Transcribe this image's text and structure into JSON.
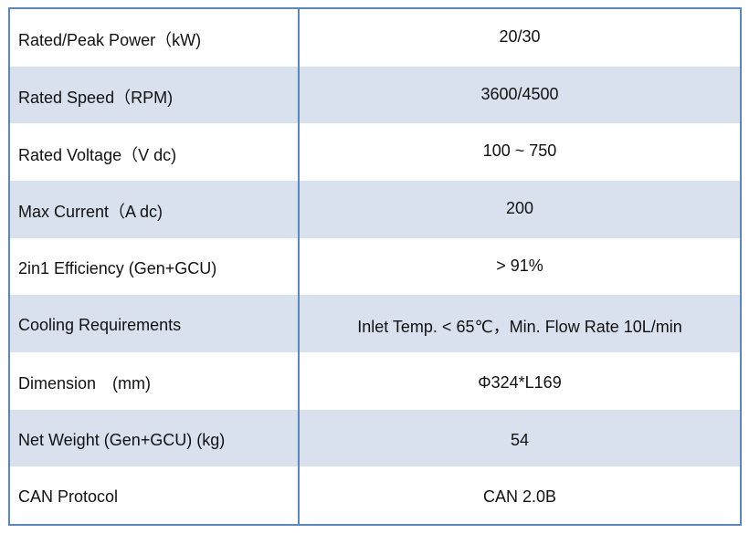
{
  "spec_table": {
    "rows": [
      {
        "label": "Rated/Peak Power（kW)",
        "value": "20/30"
      },
      {
        "label": "Rated Speed（RPM)",
        "value": "3600/4500"
      },
      {
        "label": "Rated Voltage（V dc)",
        "value": "100 ~ 750"
      },
      {
        "label": "Max Current（A dc)",
        "value": "200"
      },
      {
        "label": "2in1 Efficiency (Gen+GCU)",
        "value": "> 91%"
      },
      {
        "label": "Cooling Requirements",
        "value": "Inlet Temp. < 65℃，Min. Flow Rate 10L/min"
      },
      {
        "label": "Dimension　(mm)",
        "value": "Φ324*L169"
      },
      {
        "label": "Net Weight (Gen+GCU) (kg)",
        "value": "54"
      },
      {
        "label": "CAN Protocol",
        "value": "CAN 2.0B"
      }
    ]
  },
  "colors": {
    "border": "#5b87bb",
    "shaded_row": "#d9e1ef",
    "plain_row": "#ffffff"
  }
}
